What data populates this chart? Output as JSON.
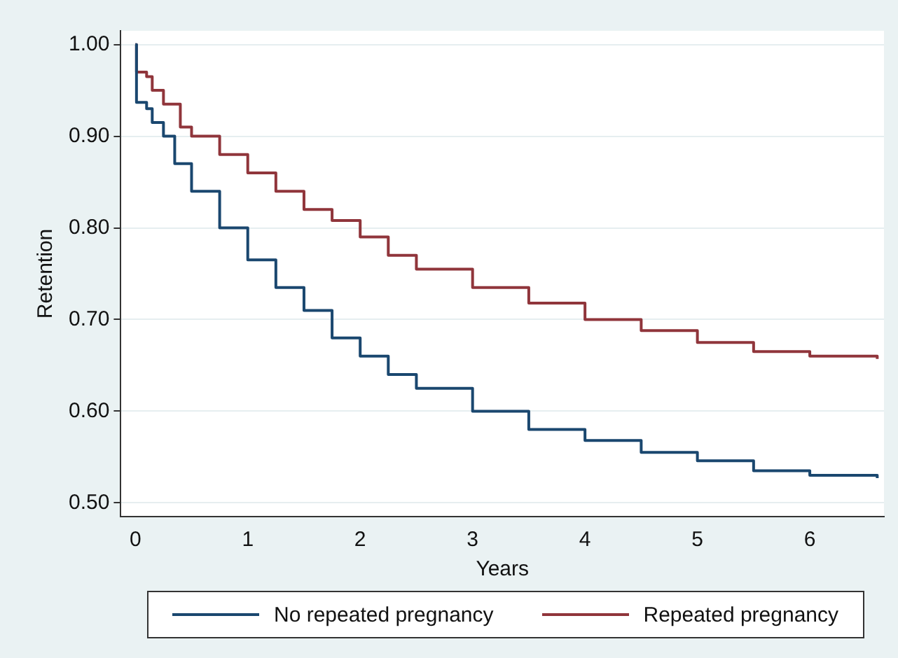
{
  "chart_data": {
    "type": "step",
    "xlabel": "Years",
    "ylabel": "Retention",
    "xlim": [
      -0.13,
      6.66
    ],
    "ylim": [
      0.485,
      1.015
    ],
    "xticks": [
      0,
      1,
      2,
      3,
      4,
      5,
      6
    ],
    "yticks": [
      {
        "value": 0.5,
        "label": "0.50"
      },
      {
        "value": 0.6,
        "label": "0.60"
      },
      {
        "value": 0.7,
        "label": "0.70"
      },
      {
        "value": 0.8,
        "label": "0.80"
      },
      {
        "value": 0.9,
        "label": "0.90"
      },
      {
        "value": 1,
        "label": "1.00"
      }
    ],
    "grid": "y",
    "legend": "bottom",
    "marker": "none",
    "line_style": "solid",
    "series": [
      {
        "name": "No repeated pregnancy",
        "color": "#1a476f",
        "x": [
          0,
          0.01,
          0.1,
          0.15,
          0.25,
          0.35,
          0.5,
          0.75,
          1,
          1.25,
          1.5,
          1.75,
          2,
          2.25,
          2.5,
          3,
          3.5,
          4,
          4.5,
          5,
          5.5,
          6,
          6.6
        ],
        "values": [
          1,
          0.937,
          0.93,
          0.915,
          0.9,
          0.87,
          0.84,
          0.8,
          0.765,
          0.735,
          0.71,
          0.68,
          0.66,
          0.64,
          0.625,
          0.6,
          0.58,
          0.568,
          0.555,
          0.546,
          0.535,
          0.53,
          0.527
        ]
      },
      {
        "name": "Repeated pregnancy",
        "color": "#90353b",
        "x": [
          0,
          0.01,
          0.1,
          0.15,
          0.25,
          0.4,
          0.5,
          0.75,
          1,
          1.25,
          1.5,
          1.75,
          2,
          2.25,
          2.5,
          3,
          3.5,
          4,
          4.5,
          5,
          5.5,
          6,
          6.6
        ],
        "values": [
          1,
          0.97,
          0.965,
          0.95,
          0.935,
          0.91,
          0.9,
          0.88,
          0.86,
          0.84,
          0.82,
          0.808,
          0.79,
          0.77,
          0.755,
          0.735,
          0.718,
          0.7,
          0.688,
          0.675,
          0.665,
          0.66,
          0.657
        ]
      }
    ]
  }
}
